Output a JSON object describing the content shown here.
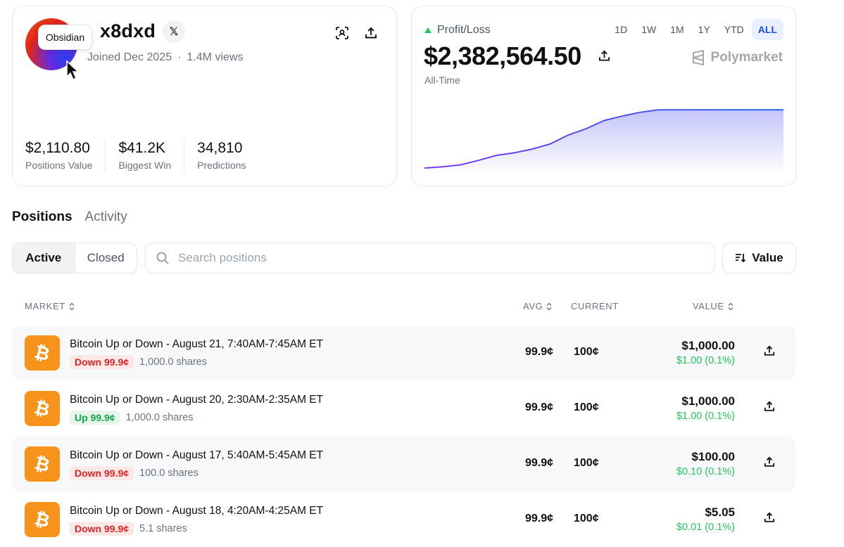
{
  "profile": {
    "username": "x8dxd",
    "tooltip": "Obsidian",
    "joined": "Joined Dec 2025",
    "views": "1.4M views",
    "x_label": "𝕏",
    "stats": [
      {
        "value": "$2,110.80",
        "label": "Positions Value"
      },
      {
        "value": "$41.2K",
        "label": "Biggest Win"
      },
      {
        "value": "34,810",
        "label": "Predictions"
      }
    ]
  },
  "pnl": {
    "label": "Profit/Loss",
    "value": "$2,382,564.50",
    "period": "All-Time",
    "brand": "Polymarket",
    "ranges": [
      "1D",
      "1W",
      "1M",
      "1Y",
      "YTD",
      "ALL"
    ],
    "active_range": "ALL",
    "line_color": "#4f46e5",
    "up_color": "#22c55e"
  },
  "chart_data": {
    "type": "area",
    "title": "",
    "xlabel": "",
    "ylabel": "",
    "x": [
      0,
      1,
      2,
      3,
      4,
      5,
      6,
      7,
      8,
      9,
      10,
      11,
      12,
      13,
      14,
      15,
      16,
      17,
      18,
      19,
      20
    ],
    "values": [
      0.0,
      0.02,
      0.05,
      0.12,
      0.2,
      0.24,
      0.3,
      0.38,
      0.52,
      0.62,
      0.75,
      0.82,
      0.88,
      0.92,
      0.92,
      0.92,
      0.92,
      0.92,
      0.92,
      0.92,
      0.92
    ]
  },
  "tabs": {
    "positions": "Positions",
    "activity": "Activity"
  },
  "filters": {
    "active": "Active",
    "closed": "Closed",
    "search_placeholder": "Search positions",
    "sort": "Value"
  },
  "table": {
    "headers": {
      "market": "MARKET",
      "avg": "AVG",
      "current": "CURRENT",
      "value": "VALUE"
    },
    "rows": [
      {
        "title": "Bitcoin Up or Down - August 21, 7:40AM-7:45AM ET",
        "side": "Down 99.9¢",
        "side_type": "down",
        "shares": "1,000.0 shares",
        "avg": "99.9¢",
        "current": "100¢",
        "value": "$1,000.00",
        "change": "$1.00 (0.1%)"
      },
      {
        "title": "Bitcoin Up or Down - August 20, 2:30AM-2:35AM ET",
        "side": "Up 99.9¢",
        "side_type": "up",
        "shares": "1,000.0 shares",
        "avg": "99.9¢",
        "current": "100¢",
        "value": "$1,000.00",
        "change": "$1.00 (0.1%)"
      },
      {
        "title": "Bitcoin Up or Down - August 17, 5:40AM-5:45AM ET",
        "side": "Down 99.9¢",
        "side_type": "down",
        "shares": "100.0 shares",
        "avg": "99.9¢",
        "current": "100¢",
        "value": "$100.00",
        "change": "$0.10 (0.1%)"
      },
      {
        "title": "Bitcoin Up or Down - August 18, 4:20AM-4:25AM ET",
        "side": "Down 99.9¢",
        "side_type": "down",
        "shares": "5.1 shares",
        "avg": "99.9¢",
        "current": "100¢",
        "value": "$5.05",
        "change": "$0.01 (0.1%)"
      }
    ]
  }
}
